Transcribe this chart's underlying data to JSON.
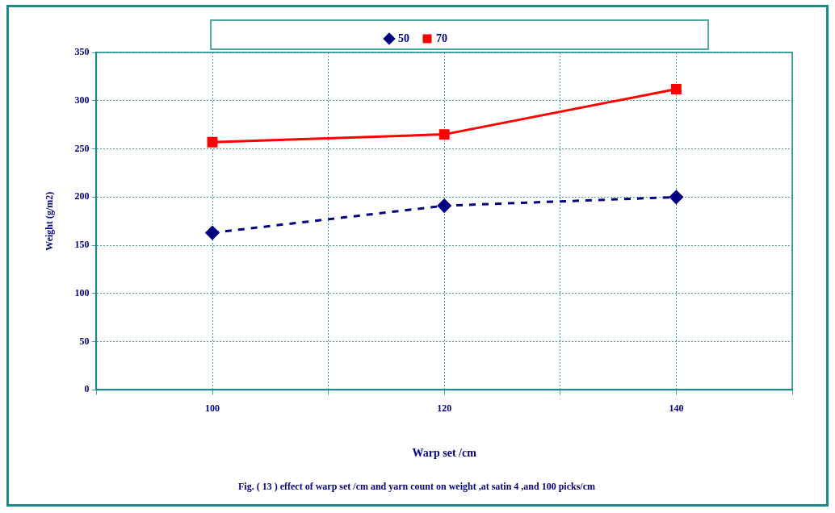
{
  "chart_data": {
    "type": "line",
    "title": "Fig. ( 13 ) effect of warp set /cm and yarn count on weight ,at satin 4 ,and 100 picks/cm",
    "xlabel": "Warp set /cm",
    "ylabel": "Weight (g/m2)",
    "x": [
      100,
      120,
      140
    ],
    "series": [
      {
        "name": "50",
        "color": "#000080",
        "values": [
          163,
          191,
          200
        ],
        "marker": "diamond",
        "line_style": "dashed"
      },
      {
        "name": "70",
        "color": "#ff0000",
        "values": [
          257,
          265,
          312
        ],
        "marker": "square",
        "line_style": "solid"
      }
    ],
    "xlim": [
      90,
      150
    ],
    "xticks": [
      {
        "value": 90,
        "label": null
      },
      100,
      {
        "value": 110,
        "label": null
      },
      120,
      {
        "value": 130,
        "label": null
      },
      140,
      {
        "value": 150,
        "label": null
      }
    ],
    "ylim": [
      0,
      350
    ],
    "yticks": [
      0,
      50,
      100,
      150,
      200,
      250,
      300,
      350
    ],
    "grid": true,
    "legend": "top"
  }
}
